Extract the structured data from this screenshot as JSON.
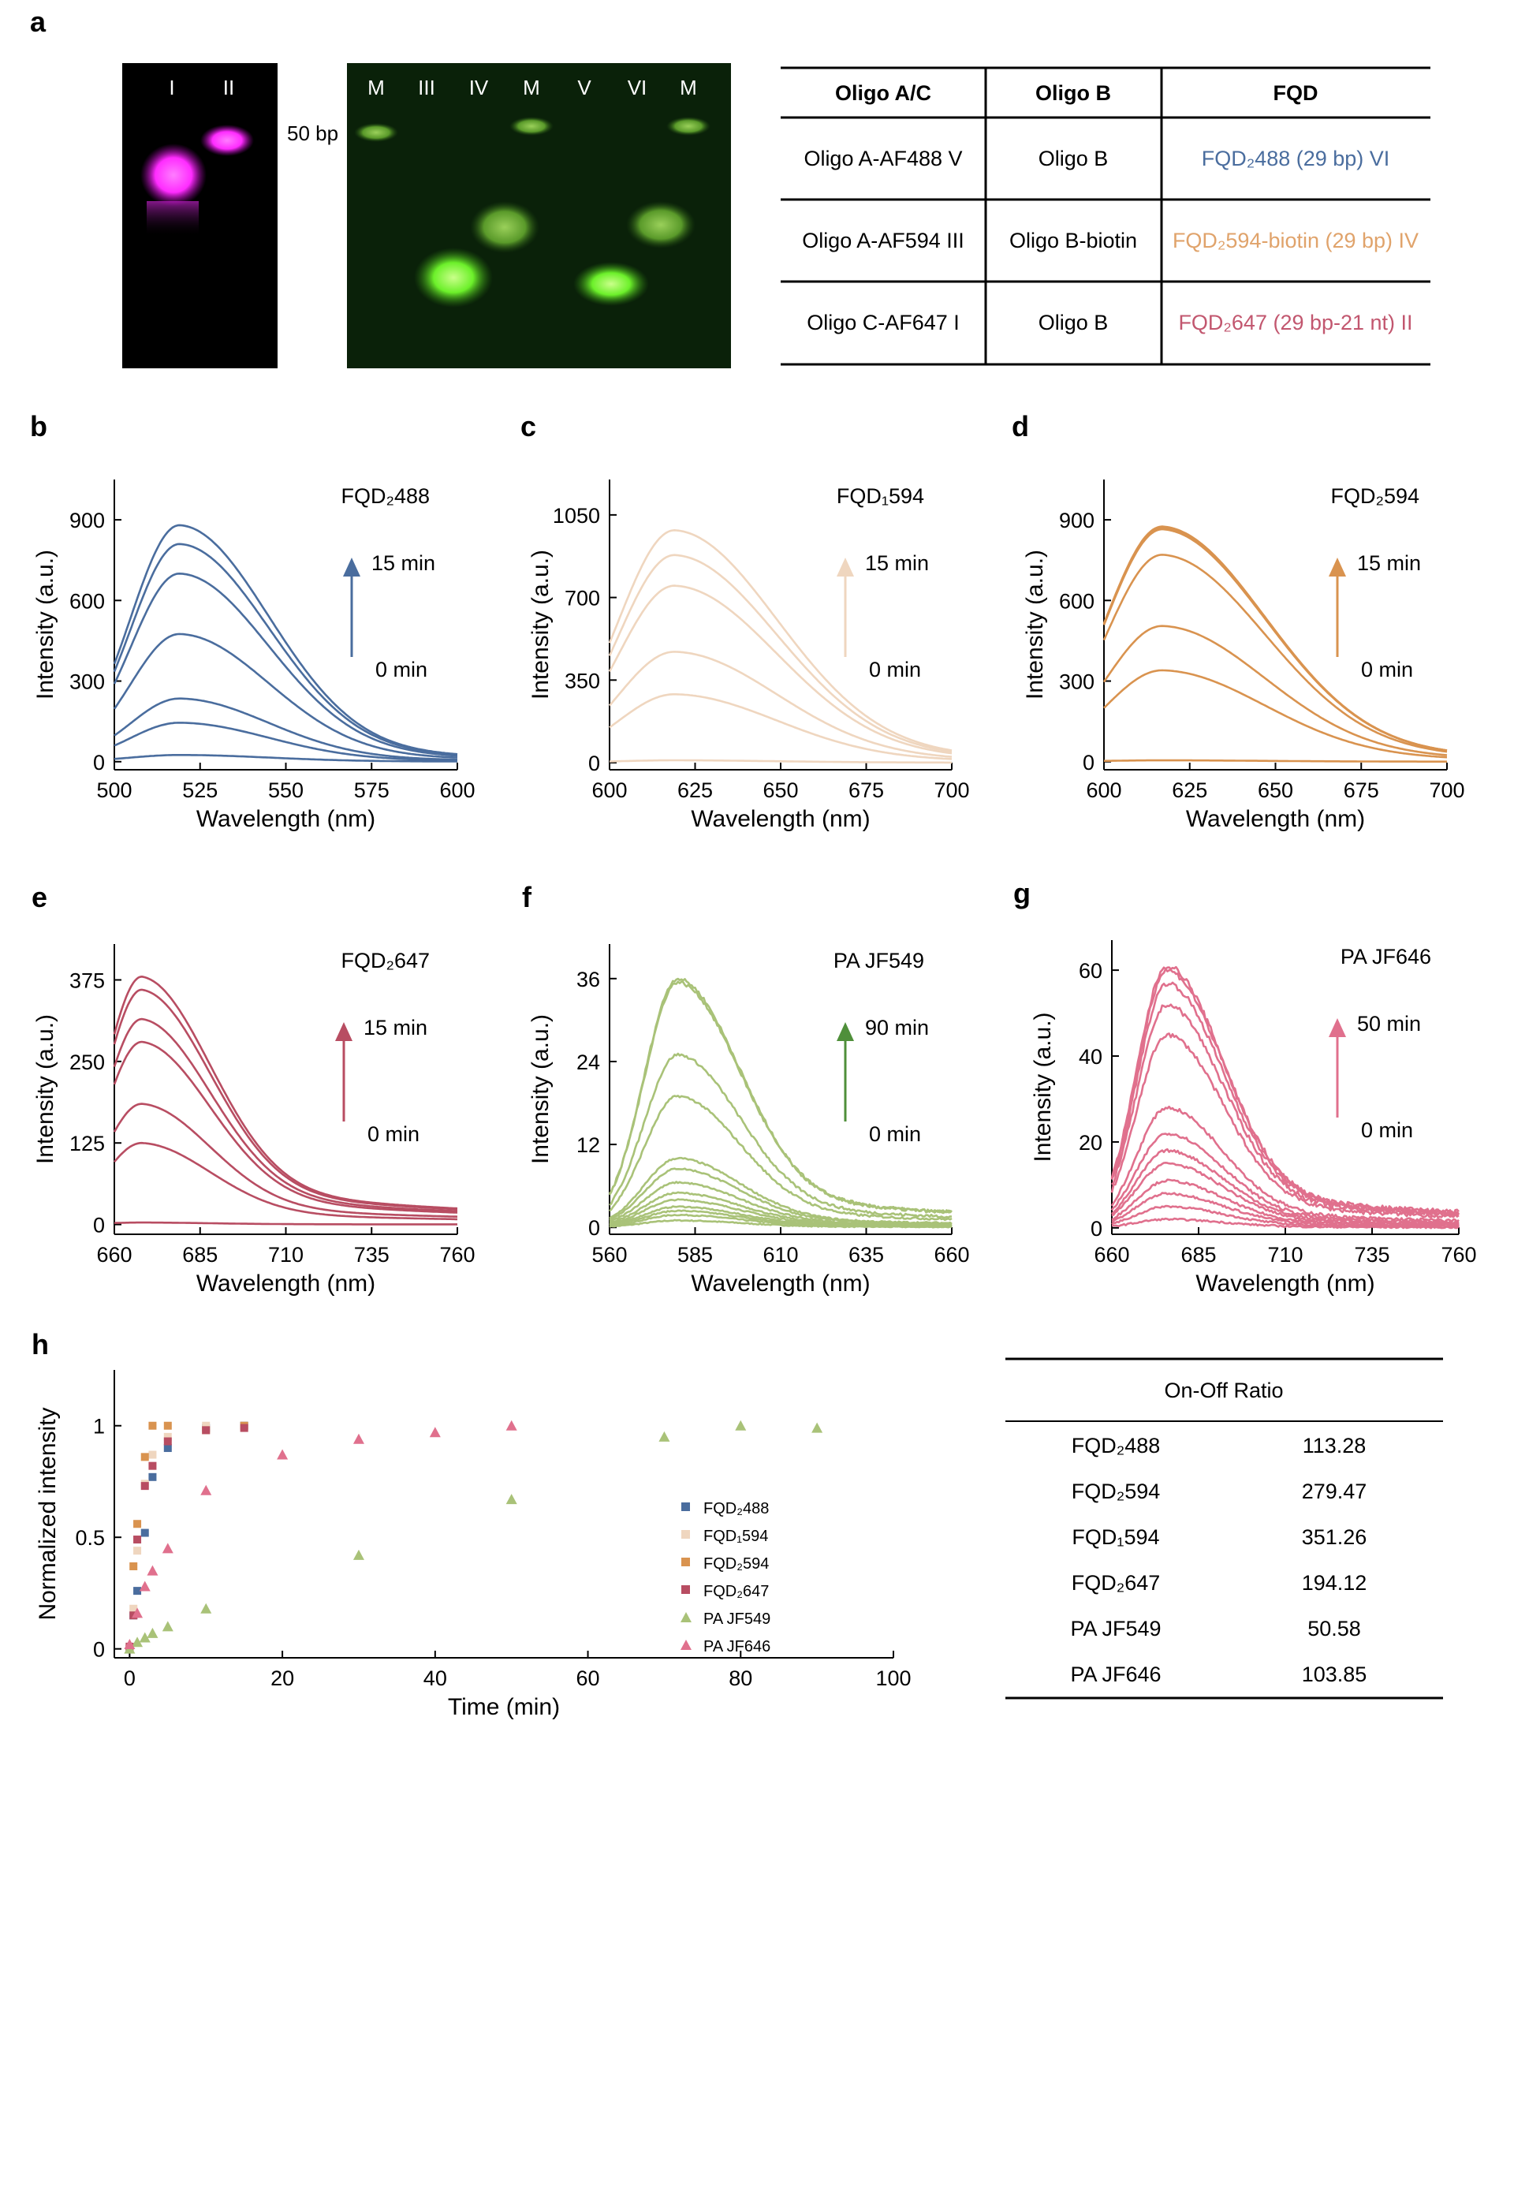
{
  "panel_letters": [
    "a",
    "b",
    "c",
    "d",
    "e",
    "f",
    "g",
    "h"
  ],
  "gel_magenta_lanes": [
    "I",
    "II"
  ],
  "gel_green_lanes": [
    "M",
    "III",
    "IV",
    "M",
    "V",
    "VI",
    "M"
  ],
  "marker_label": "50 bp",
  "oligo_table": {
    "headers": [
      "Oligo A/C",
      "Oligo B",
      "FQD"
    ],
    "rows": [
      {
        "a": "Oligo A-AF488 V",
        "b": "Oligo B",
        "fqd": "FQD₂488 (29 bp) VI",
        "color": "#4a6d9e"
      },
      {
        "a": "Oligo A-AF594 III",
        "b": "Oligo B-biotin",
        "fqd": "FQD₂594-biotin (29 bp) IV",
        "color": "#e0a36b"
      },
      {
        "a": "Oligo C-AF647 I",
        "b": "Oligo B",
        "fqd": "FQD₂647 (29 bp-21 nt) II",
        "color": "#c2576f"
      }
    ]
  },
  "chart_data": [
    {
      "type": "line",
      "panel": "b",
      "title": "FQD₂488",
      "xlabel": "Wavelength (nm)",
      "ylabel": "Intensity (a.u.)",
      "xlim": [
        500,
        600
      ],
      "ylim": [
        -30,
        1050
      ],
      "xticks": [
        500,
        525,
        550,
        575,
        600
      ],
      "yticks": [
        0,
        300,
        600,
        900
      ],
      "peak": 519,
      "width": 26,
      "tail": 0.06,
      "peaks": [
        25,
        145,
        235,
        475,
        700,
        810,
        880
      ],
      "color": "#4a6d9e",
      "arrow_top": "15 min",
      "arrow_bottom": "0 min"
    },
    {
      "type": "line",
      "panel": "c",
      "title": "FQD₁594",
      "xlabel": "Wavelength (nm)",
      "ylabel": "Intensity (a.u.)",
      "xlim": [
        600,
        700
      ],
      "ylim": [
        -30,
        1200
      ],
      "xticks": [
        600,
        625,
        650,
        675,
        700
      ],
      "yticks": [
        0,
        350,
        700,
        1050
      ],
      "peak": 619,
      "width": 30,
      "tail": 0.07,
      "peaks": [
        10,
        290,
        470,
        750,
        880,
        985
      ],
      "color": "#efd6bf",
      "arrow_top": "15 min",
      "arrow_bottom": "0 min"
    },
    {
      "type": "line",
      "panel": "d",
      "title": "FQD₂594",
      "xlabel": "Wavelength (nm)",
      "ylabel": "Intensity (a.u.)",
      "xlim": [
        600,
        700
      ],
      "ylim": [
        -30,
        1050
      ],
      "xticks": [
        600,
        625,
        650,
        675,
        700
      ],
      "yticks": [
        0,
        300,
        600,
        900
      ],
      "peak": 617,
      "width": 30,
      "tail": 0.07,
      "peaks": [
        5,
        340,
        505,
        770,
        865,
        870,
        875
      ],
      "color": "#d9934f",
      "arrow_top": "15 min",
      "arrow_bottom": "0 min"
    },
    {
      "type": "line",
      "panel": "e",
      "title": "FQD₂647",
      "xlabel": "Wavelength (nm)",
      "ylabel": "Intensity (a.u.)",
      "xlim": [
        660,
        760
      ],
      "ylim": [
        -15,
        430
      ],
      "xticks": [
        660,
        685,
        710,
        735,
        760
      ],
      "yticks": [
        0,
        125,
        250,
        375
      ],
      "peak": 668,
      "width": 20,
      "tail": 0.18,
      "peaks": [
        3,
        125,
        185,
        280,
        315,
        360,
        380
      ],
      "color": "#b84d62",
      "arrow_top": "15 min",
      "arrow_bottom": "0 min"
    },
    {
      "type": "line",
      "panel": "f",
      "title": "PA JF549",
      "xlabel": "Wavelength (nm)",
      "ylabel": "Intensity (a.u.)",
      "xlim": [
        560,
        660
      ],
      "ylim": [
        -1,
        41
      ],
      "xticks": [
        560,
        585,
        610,
        635,
        660
      ],
      "yticks": [
        0,
        12,
        24,
        36
      ],
      "peak": 580,
      "width": 18,
      "tail": 0.15,
      "noise": 0.35,
      "peaks": [
        1.0,
        1.8,
        2.4,
        3.0,
        4.0,
        5.0,
        6.5,
        8.5,
        10.0,
        19.0,
        25.0,
        35.5,
        36.0
      ],
      "color": "#a9c278",
      "arrow_color": "#4f8f3a",
      "arrow_top": "90 min",
      "arrow_bottom": "0 min"
    },
    {
      "type": "line",
      "panel": "g",
      "title": "PA JF646",
      "xlabel": "Wavelength (nm)",
      "ylabel": "Intensity (a.u.)",
      "xlim": [
        660,
        760
      ],
      "ylim": [
        -1.5,
        67
      ],
      "xticks": [
        660,
        685,
        710,
        735,
        760
      ],
      "yticks": [
        0,
        20,
        40,
        60
      ],
      "peak": 676,
      "width": 16,
      "tail": 0.15,
      "noise": 0.9,
      "peaks": [
        2,
        5,
        8,
        11,
        15,
        18,
        22,
        28,
        45,
        52,
        57,
        60,
        61
      ],
      "color": "#e0708d",
      "arrow_top": "50 min",
      "arrow_bottom": "0 min"
    },
    {
      "type": "scatter",
      "panel": "h",
      "xlabel": "Time (min)",
      "ylabel": "Normalized intensity",
      "xlim": [
        -2,
        100
      ],
      "ylim": [
        -0.04,
        1.25
      ],
      "xticks": [
        0,
        20,
        40,
        60,
        80,
        100
      ],
      "yticks": [
        0,
        0.5,
        1
      ],
      "ytick_labels": [
        "0",
        "0.5",
        "1"
      ],
      "legend_position": "right",
      "series": [
        {
          "name": "FQD₂488",
          "marker": "square",
          "color": "#4a6d9e",
          "x": [
            0,
            0.5,
            1,
            2,
            3,
            5,
            10,
            15
          ],
          "y": [
            0,
            0.15,
            0.26,
            0.52,
            0.77,
            0.9,
            0.99,
            1.0
          ]
        },
        {
          "name": "FQD₁594",
          "marker": "square",
          "color": "#efd6bf",
          "x": [
            0,
            0.5,
            1,
            2,
            3,
            5,
            10,
            15
          ],
          "y": [
            0,
            0.18,
            0.44,
            0.74,
            0.87,
            0.95,
            1.0,
            0.99
          ]
        },
        {
          "name": "FQD₂594",
          "marker": "square",
          "color": "#d9934f",
          "x": [
            0,
            0.5,
            1,
            2,
            3,
            5,
            10,
            15
          ],
          "y": [
            0,
            0.37,
            0.56,
            0.86,
            1.0,
            1.0,
            0.98,
            1.0
          ]
        },
        {
          "name": "FQD₂647",
          "marker": "square",
          "color": "#b84d62",
          "x": [
            0,
            0.5,
            1,
            2,
            3,
            5,
            10,
            15
          ],
          "y": [
            0.01,
            0.15,
            0.49,
            0.73,
            0.82,
            0.93,
            0.98,
            0.99
          ]
        },
        {
          "name": "PA JF549",
          "marker": "triangle",
          "color": "#a9c278",
          "x": [
            0,
            1,
            2,
            3,
            5,
            10,
            30,
            50,
            70,
            80,
            90
          ],
          "y": [
            0.0,
            0.03,
            0.05,
            0.07,
            0.1,
            0.18,
            0.42,
            0.67,
            0.95,
            1.0,
            0.99
          ]
        },
        {
          "name": "PA JF646",
          "marker": "triangle",
          "color": "#e0708d",
          "x": [
            0,
            1,
            2,
            3,
            5,
            10,
            20,
            30,
            40,
            50
          ],
          "y": [
            0.02,
            0.16,
            0.28,
            0.35,
            0.45,
            0.71,
            0.87,
            0.94,
            0.97,
            1.0
          ]
        }
      ]
    }
  ],
  "ratio_table": {
    "title": "On-Off Ratio",
    "rows": [
      {
        "name": "FQD₂488",
        "value": "113.28"
      },
      {
        "name": "FQD₂594",
        "value": "279.47"
      },
      {
        "name": "FQD₁594",
        "value": "351.26"
      },
      {
        "name": "FQD₂647",
        "value": "194.12"
      },
      {
        "name": "PA JF549",
        "value": "50.58"
      },
      {
        "name": "PA JF646",
        "value": "103.85"
      }
    ]
  }
}
